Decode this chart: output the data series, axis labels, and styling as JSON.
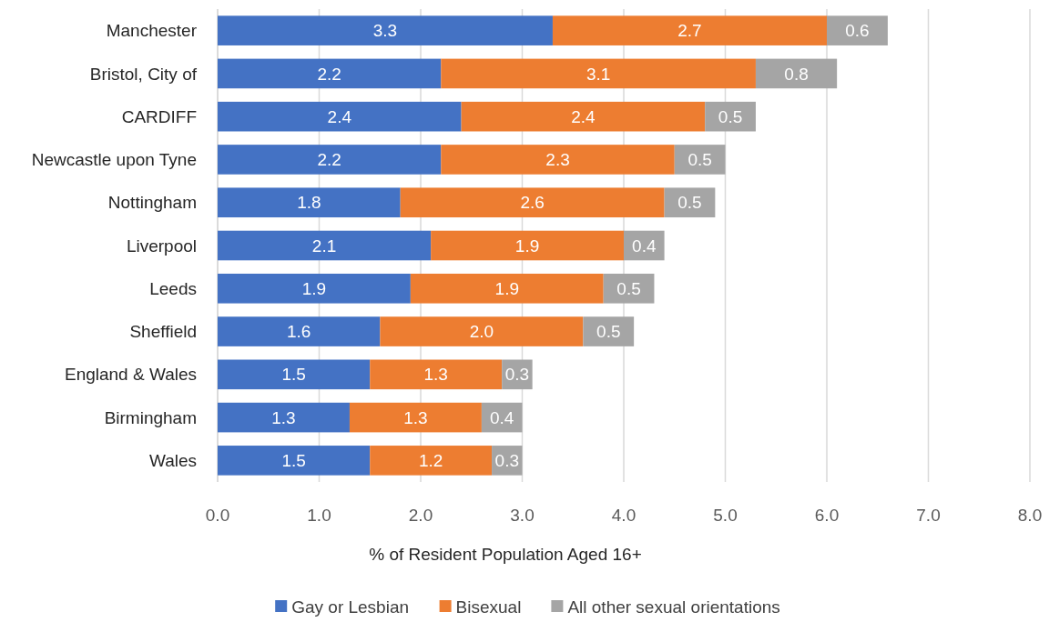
{
  "chart_data": {
    "type": "bar",
    "orientation": "horizontal",
    "stacked": true,
    "xlabel": "% of Resident Population Aged 16+",
    "categories": [
      "Manchester",
      "Bristol, City of",
      "CARDIFF",
      "Newcastle upon Tyne",
      "Nottingham",
      "Liverpool",
      "Leeds",
      "Sheffield",
      "England & Wales",
      "Birmingham",
      "Wales"
    ],
    "series": [
      {
        "name": "Gay or Lesbian",
        "color": "#4472c4",
        "values": [
          3.3,
          2.2,
          2.4,
          2.2,
          1.8,
          2.1,
          1.9,
          1.6,
          1.5,
          1.3,
          1.5
        ],
        "value_labels": [
          "3.3",
          "2.2",
          "2.4",
          "2.2",
          "1.8",
          "2.1",
          "1.9",
          "1.6",
          "1.5",
          "1.3",
          "1.5"
        ]
      },
      {
        "name": "Bisexual",
        "color": "#ed7d31",
        "values": [
          2.7,
          3.1,
          2.4,
          2.3,
          2.6,
          1.9,
          1.9,
          2.0,
          1.3,
          1.3,
          1.2
        ],
        "value_labels": [
          "2.7",
          "3.1",
          "2.4",
          "2.3",
          "2.6",
          "1.9",
          "1.9",
          "2.0",
          "1.3",
          "1.3",
          "1.2"
        ]
      },
      {
        "name": "All other sexual orientations",
        "color": "#a5a5a5",
        "values": [
          0.6,
          0.8,
          0.5,
          0.5,
          0.5,
          0.4,
          0.5,
          0.5,
          0.3,
          0.4,
          0.3
        ],
        "value_labels": [
          "0.6",
          "0.8",
          "0.5",
          "0.5",
          "0.5",
          "0.4",
          "0.5",
          "0.5",
          "0.3",
          "0.4",
          "0.3"
        ]
      }
    ],
    "xlim": [
      0,
      8
    ],
    "xticks": [
      {
        "value": 0,
        "label": "0.0"
      },
      {
        "value": 1,
        "label": "1.0"
      },
      {
        "value": 2,
        "label": "2.0"
      },
      {
        "value": 3,
        "label": "3.0"
      },
      {
        "value": 4,
        "label": "4.0"
      },
      {
        "value": 5,
        "label": "5.0"
      },
      {
        "value": 6,
        "label": "6.0"
      },
      {
        "value": 7,
        "label": "7.0"
      },
      {
        "value": 8,
        "label": "8.0"
      }
    ],
    "grid": "x",
    "legend": "bottom"
  }
}
